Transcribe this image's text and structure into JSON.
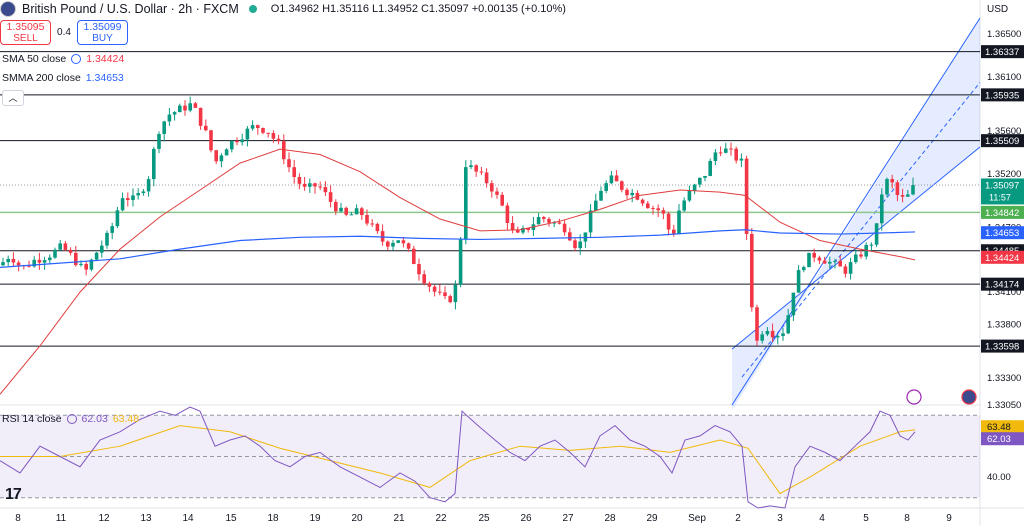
{
  "header": {
    "symbol_title": "British Pound / U.S. Dollar · 2h · FXCM",
    "ohlc": "O1.34962 H1.35116 L1.34952 C1.35097 +0.00135 (+0.10%)",
    "currency": "USD"
  },
  "trade": {
    "sell_price": "1.35095",
    "sell_label": "SELL",
    "spread": "0.4",
    "buy_price": "1.35099",
    "buy_label": "BUY"
  },
  "indicators": {
    "sma_label": "SMA 50 close",
    "sma_value": "1.34424",
    "smma_label": "SMMA 200 close",
    "smma_value": "1.34653",
    "rsi_label": "RSI 14 close",
    "rsi_value": "62.03",
    "rsi_ma_value": "63.48"
  },
  "price_axis": {
    "ticks": [
      "1.36500",
      "1.36100",
      "1.35600",
      "1.35200",
      "1.34700",
      "1.34100",
      "1.33800",
      "1.33300",
      "1.33050"
    ],
    "tick_values": [
      1.365,
      1.361,
      1.356,
      1.352,
      1.347,
      1.341,
      1.338,
      1.333,
      1.3305
    ]
  },
  "price_tags": [
    {
      "label": "1.36337",
      "value": 1.36337,
      "style": "dark"
    },
    {
      "label": "1.35935",
      "value": 1.35935,
      "style": "dark"
    },
    {
      "label": "1.35509",
      "value": 1.35509,
      "style": "dark"
    },
    {
      "label": "1.35097",
      "value": 1.35097,
      "style": "last",
      "extra": "11:57"
    },
    {
      "label": "1.34842",
      "value": 1.34842,
      "style": "green"
    },
    {
      "label": "1.34653",
      "value": 1.34653,
      "style": "blue"
    },
    {
      "label": "1.34485",
      "value": 1.34485,
      "style": "dark"
    },
    {
      "label": "1.34424",
      "value": 1.34424,
      "style": "red"
    },
    {
      "label": "1.34174",
      "value": 1.34174,
      "style": "dark"
    },
    {
      "label": "1.33598",
      "value": 1.33598,
      "style": "dark"
    }
  ],
  "rsi_axis": {
    "ticks": [
      "40.00"
    ],
    "tags": [
      {
        "label": "63.48",
        "value": 63.48,
        "style": "yellow"
      },
      {
        "label": "62.03",
        "value": 62.03,
        "style": "purple"
      }
    ]
  },
  "time_axis": {
    "labels": [
      "8",
      "11",
      "12",
      "13",
      "14",
      "15",
      "18",
      "19",
      "20",
      "21",
      "22",
      "25",
      "26",
      "27",
      "28",
      "29",
      "Sep",
      "2",
      "3",
      "4",
      "5",
      "8",
      "9"
    ]
  },
  "colors": {
    "up": "#089981",
    "down": "#f23645",
    "sma": "#e03c3c",
    "smma": "#2962ff",
    "channel": "#2962ff",
    "rsi": "#7e57c2",
    "rsi_ma": "#f0b90b"
  },
  "chart_data": {
    "type": "candlestick",
    "price_range": [
      1.3305,
      1.3665
    ],
    "horizontal_levels": [
      1.36337,
      1.35935,
      1.35509,
      1.34485,
      1.34174,
      1.33598
    ],
    "green_level": 1.34842,
    "last_price": 1.35097,
    "close_path": [
      [
        0,
        1.3435
      ],
      [
        10,
        1.3445
      ],
      [
        22,
        1.3432
      ],
      [
        35,
        1.344
      ],
      [
        50,
        1.3445
      ],
      [
        62,
        1.3452
      ],
      [
        75,
        1.344
      ],
      [
        85,
        1.3428
      ],
      [
        95,
        1.3445
      ],
      [
        110,
        1.3465
      ],
      [
        122,
        1.35
      ],
      [
        135,
        1.3495
      ],
      [
        148,
        1.3515
      ],
      [
        158,
        1.356
      ],
      [
        168,
        1.3575
      ],
      [
        180,
        1.358
      ],
      [
        192,
        1.3585
      ],
      [
        205,
        1.356
      ],
      [
        215,
        1.353
      ],
      [
        225,
        1.3545
      ],
      [
        240,
        1.3555
      ],
      [
        255,
        1.3565
      ],
      [
        268,
        1.356
      ],
      [
        280,
        1.3545
      ],
      [
        292,
        1.352
      ],
      [
        305,
        1.3505
      ],
      [
        318,
        1.351
      ],
      [
        330,
        1.3495
      ],
      [
        345,
        1.348
      ],
      [
        360,
        1.3485
      ],
      [
        372,
        1.347
      ],
      [
        385,
        1.3455
      ],
      [
        398,
        1.346
      ],
      [
        410,
        1.3445
      ],
      [
        422,
        1.3425
      ],
      [
        435,
        1.341
      ],
      [
        448,
        1.34
      ],
      [
        458,
        1.342
      ],
      [
        465,
        1.353
      ],
      [
        478,
        1.352
      ],
      [
        490,
        1.351
      ],
      [
        502,
        1.349
      ],
      [
        515,
        1.346
      ],
      [
        528,
        1.347
      ],
      [
        540,
        1.348
      ],
      [
        552,
        1.3475
      ],
      [
        565,
        1.347
      ],
      [
        578,
        1.345
      ],
      [
        590,
        1.348
      ],
      [
        600,
        1.3505
      ],
      [
        612,
        1.3515
      ],
      [
        625,
        1.3505
      ],
      [
        637,
        1.35
      ],
      [
        650,
        1.349
      ],
      [
        662,
        1.3485
      ],
      [
        672,
        1.346
      ],
      [
        680,
        1.349
      ],
      [
        692,
        1.3505
      ],
      [
        705,
        1.352
      ],
      [
        718,
        1.3545
      ],
      [
        730,
        1.354
      ],
      [
        742,
        1.353
      ],
      [
        748,
        1.3445
      ],
      [
        755,
        1.336
      ],
      [
        765,
        1.338
      ],
      [
        775,
        1.337
      ],
      [
        785,
        1.3375
      ],
      [
        795,
        1.342
      ],
      [
        805,
        1.344
      ],
      [
        815,
        1.3445
      ],
      [
        825,
        1.344
      ],
      [
        835,
        1.3435
      ],
      [
        845,
        1.343
      ],
      [
        855,
        1.344
      ],
      [
        865,
        1.345
      ],
      [
        875,
        1.346
      ],
      [
        883,
        1.351
      ],
      [
        890,
        1.3515
      ],
      [
        897,
        1.35
      ],
      [
        905,
        1.3495
      ],
      [
        915,
        1.351
      ]
    ],
    "sma50": [
      [
        0,
        1.3315
      ],
      [
        40,
        1.336
      ],
      [
        80,
        1.341
      ],
      [
        120,
        1.345
      ],
      [
        160,
        1.348
      ],
      [
        200,
        1.3505
      ],
      [
        240,
        1.353
      ],
      [
        280,
        1.3543
      ],
      [
        320,
        1.3538
      ],
      [
        360,
        1.3522
      ],
      [
        400,
        1.3498
      ],
      [
        440,
        1.3478
      ],
      [
        480,
        1.3467
      ],
      [
        520,
        1.3468
      ],
      [
        560,
        1.3476
      ],
      [
        600,
        1.3487
      ],
      [
        640,
        1.35
      ],
      [
        680,
        1.3505
      ],
      [
        720,
        1.3503
      ],
      [
        745,
        1.35
      ],
      [
        780,
        1.3475
      ],
      [
        820,
        1.3458
      ],
      [
        860,
        1.345
      ],
      [
        900,
        1.3443
      ],
      [
        915,
        1.344
      ]
    ],
    "smma200": [
      [
        0,
        1.3433
      ],
      [
        60,
        1.3437
      ],
      [
        120,
        1.3441
      ],
      [
        180,
        1.345
      ],
      [
        240,
        1.3458
      ],
      [
        300,
        1.3461
      ],
      [
        360,
        1.3462
      ],
      [
        420,
        1.346
      ],
      [
        480,
        1.3459
      ],
      [
        540,
        1.346
      ],
      [
        600,
        1.3461
      ],
      [
        660,
        1.3463
      ],
      [
        720,
        1.3467
      ],
      [
        745,
        1.3468
      ],
      [
        780,
        1.3465
      ],
      [
        840,
        1.3464
      ],
      [
        880,
        1.3465
      ],
      [
        915,
        1.3466
      ]
    ],
    "channel": {
      "lower_start": [
        732,
        1.3357
      ],
      "lower_end": [
        980,
        1.3545
      ],
      "upper_start": [
        732,
        1.33
      ],
      "upper_end": [
        980,
        1.3665
      ]
    },
    "rsi_range": [
      25,
      75
    ],
    "rsi_levels": [
      70,
      50,
      30
    ],
    "rsi": [
      [
        0,
        48
      ],
      [
        20,
        42
      ],
      [
        40,
        55
      ],
      [
        60,
        50
      ],
      [
        80,
        45
      ],
      [
        100,
        58
      ],
      [
        120,
        62
      ],
      [
        140,
        68
      ],
      [
        160,
        72
      ],
      [
        175,
        70
      ],
      [
        190,
        74
      ],
      [
        200,
        72
      ],
      [
        215,
        55
      ],
      [
        230,
        58
      ],
      [
        245,
        60
      ],
      [
        260,
        55
      ],
      [
        275,
        48
      ],
      [
        290,
        45
      ],
      [
        305,
        50
      ],
      [
        320,
        52
      ],
      [
        340,
        45
      ],
      [
        360,
        40
      ],
      [
        380,
        35
      ],
      [
        400,
        42
      ],
      [
        415,
        38
      ],
      [
        430,
        30
      ],
      [
        445,
        28
      ],
      [
        455,
        32
      ],
      [
        462,
        72
      ],
      [
        478,
        65
      ],
      [
        495,
        58
      ],
      [
        510,
        52
      ],
      [
        525,
        48
      ],
      [
        540,
        55
      ],
      [
        555,
        58
      ],
      [
        570,
        52
      ],
      [
        585,
        45
      ],
      [
        600,
        60
      ],
      [
        615,
        65
      ],
      [
        630,
        58
      ],
      [
        645,
        55
      ],
      [
        660,
        50
      ],
      [
        672,
        42
      ],
      [
        685,
        58
      ],
      [
        700,
        60
      ],
      [
        715,
        65
      ],
      [
        730,
        62
      ],
      [
        742,
        55
      ],
      [
        748,
        28
      ],
      [
        758,
        25
      ],
      [
        770,
        26
      ],
      [
        785,
        25
      ],
      [
        795,
        45
      ],
      [
        810,
        55
      ],
      [
        825,
        52
      ],
      [
        840,
        48
      ],
      [
        855,
        55
      ],
      [
        870,
        62
      ],
      [
        880,
        72
      ],
      [
        890,
        70
      ],
      [
        900,
        60
      ],
      [
        908,
        58
      ],
      [
        915,
        62
      ]
    ],
    "rsi_ma": [
      [
        0,
        50
      ],
      [
        60,
        50
      ],
      [
        120,
        55
      ],
      [
        180,
        65
      ],
      [
        230,
        62
      ],
      [
        280,
        54
      ],
      [
        330,
        48
      ],
      [
        380,
        42
      ],
      [
        430,
        35
      ],
      [
        470,
        48
      ],
      [
        520,
        55
      ],
      [
        570,
        53
      ],
      [
        620,
        55
      ],
      [
        670,
        52
      ],
      [
        720,
        58
      ],
      [
        748,
        54
      ],
      [
        780,
        32
      ],
      [
        810,
        40
      ],
      [
        860,
        55
      ],
      [
        900,
        62
      ],
      [
        915,
        63
      ]
    ],
    "time_labels": [
      "8",
      "11",
      "12",
      "13",
      "14",
      "15",
      "18",
      "19",
      "20",
      "21",
      "22",
      "25",
      "26",
      "27",
      "28",
      "29",
      "Sep",
      "2",
      "3",
      "4",
      "5",
      "8",
      "9"
    ]
  }
}
